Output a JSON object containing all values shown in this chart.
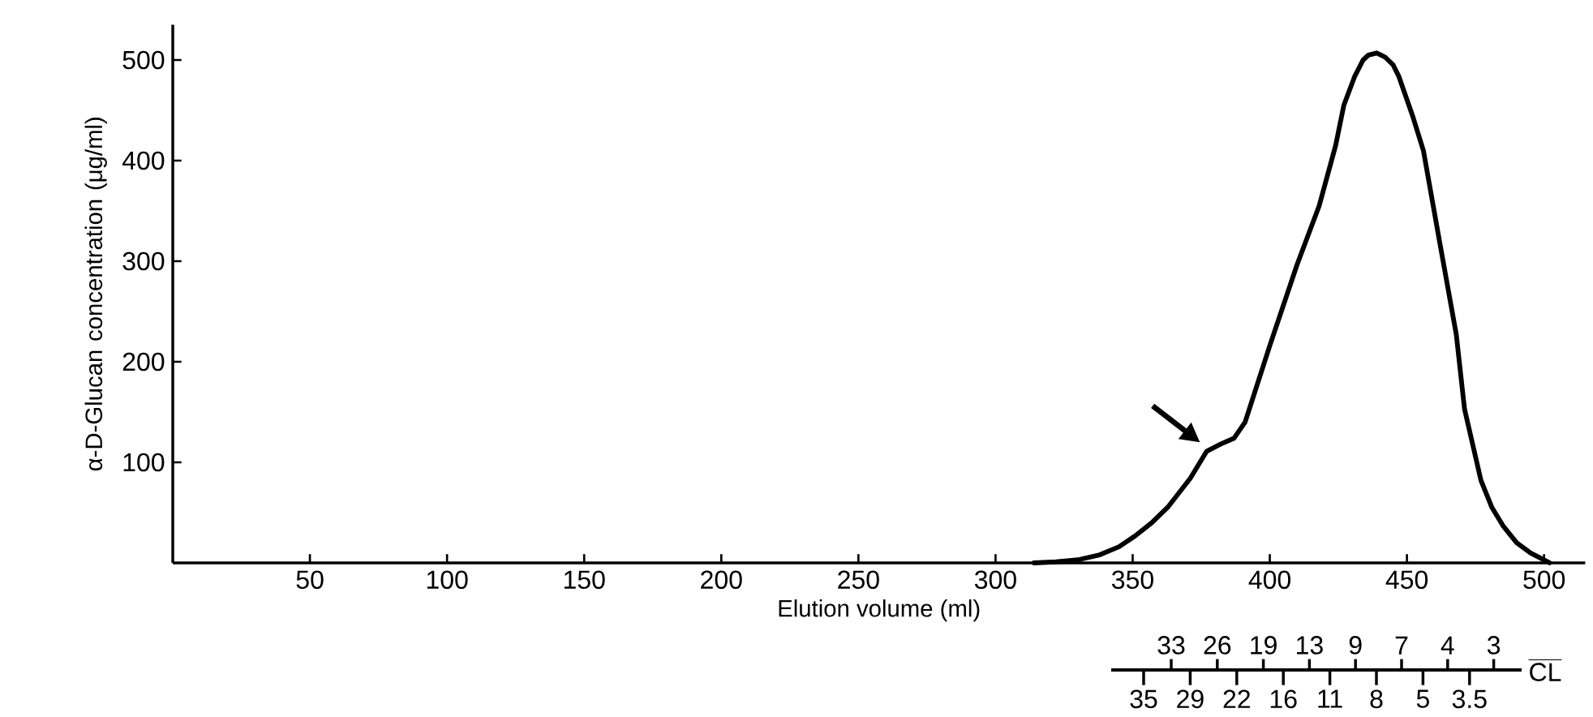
{
  "chart_data": {
    "type": "line",
    "xlabel": "Elution volume (ml)",
    "ylabel": "α-D-Glucan concentration (μg/ml)",
    "x": [
      314,
      322,
      330,
      338,
      345,
      351,
      357,
      363,
      371,
      377,
      382,
      387,
      391,
      400,
      410,
      418,
      424,
      427,
      431,
      434,
      436,
      439,
      442,
      445,
      447,
      452,
      456,
      462,
      468,
      471,
      477,
      481,
      485,
      490,
      495,
      502
    ],
    "series": [
      {
        "color": "#000000",
        "values": [
          0,
          1,
          3,
          8,
          16,
          27,
          40,
          56,
          84,
          111,
          118,
          124,
          140,
          216,
          297,
          355,
          415,
          455,
          484,
          500,
          505,
          507,
          503,
          495,
          484,
          445,
          410,
          318,
          227,
          153,
          82,
          55,
          37,
          20,
          10,
          0
        ]
      }
    ],
    "xlim": [
      0,
      515
    ],
    "ylim": [
      0,
      535
    ],
    "xticks": [
      50,
      100,
      150,
      200,
      250,
      300,
      350,
      400,
      450,
      500
    ],
    "yticks": [
      100,
      200,
      300,
      400,
      500
    ],
    "annotations": [
      "CL",
      "33",
      "26",
      "19",
      "13",
      "9",
      "7",
      "4",
      "3",
      "35",
      "29",
      "22",
      "16",
      "11",
      "8",
      "5",
      "3.5"
    ],
    "grid": false,
    "marker": "none",
    "line_style": "solid"
  }
}
